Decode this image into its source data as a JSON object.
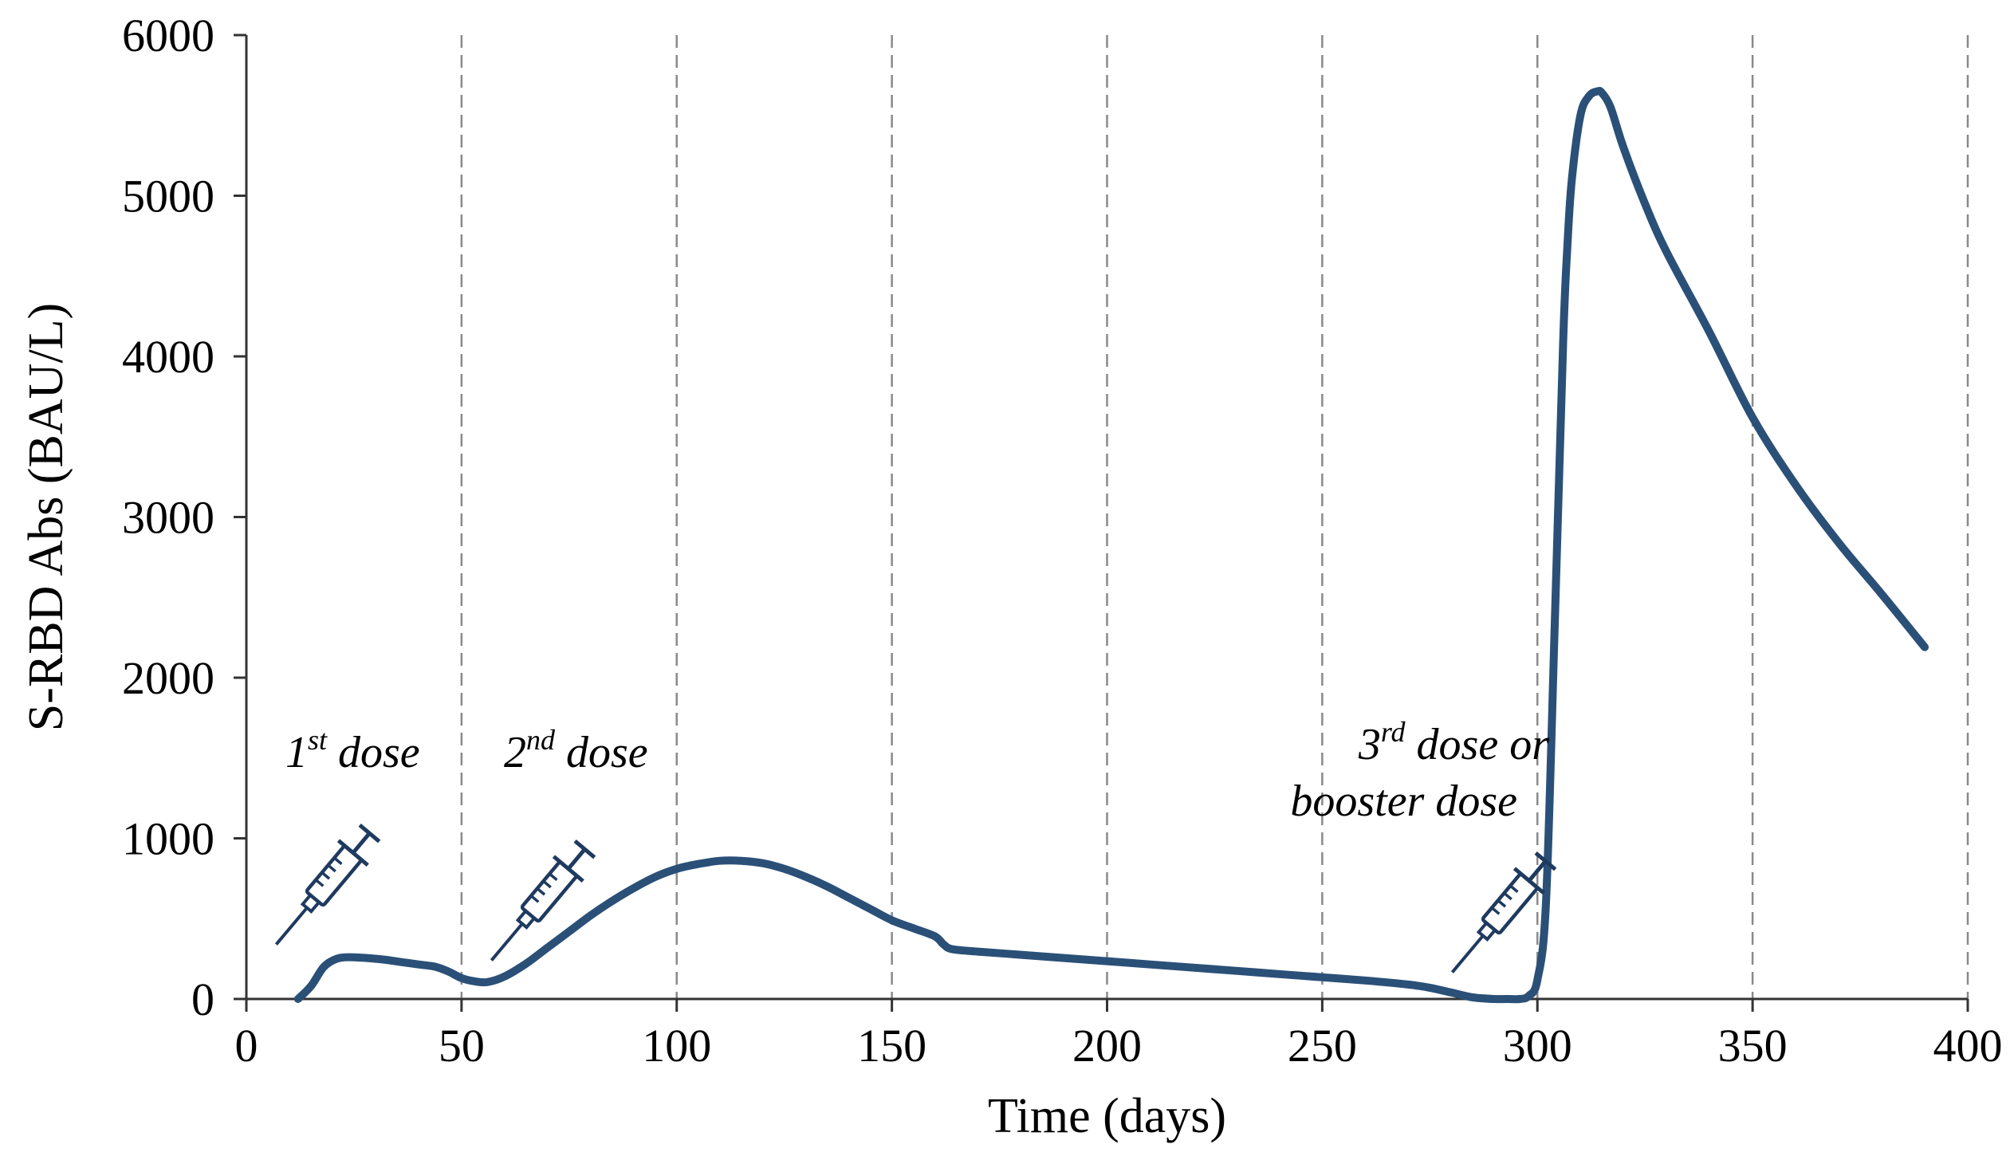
{
  "chart_data": {
    "type": "line",
    "title": "",
    "xlabel": "Time (days)",
    "ylabel": "S-RBD Abs (BAU/L)",
    "xlim": [
      0,
      400
    ],
    "ylim": [
      0,
      6000
    ],
    "x_ticks": [
      0,
      50,
      100,
      150,
      200,
      250,
      300,
      350,
      400
    ],
    "y_ticks": [
      0,
      1000,
      2000,
      3000,
      4000,
      5000,
      6000
    ],
    "grid": "vertical dashed at every x tick",
    "line_color": "#2b5078",
    "series": [
      {
        "name": "S-RBD Abs",
        "x": [
          12,
          15,
          18,
          21,
          24,
          28,
          32,
          36,
          40,
          44,
          47,
          50,
          53,
          56,
          60,
          65,
          70,
          75,
          80,
          85,
          90,
          95,
          100,
          105,
          110,
          115,
          120,
          125,
          130,
          135,
          140,
          145,
          150,
          155,
          160,
          162,
          164,
          170,
          180,
          190,
          200,
          210,
          220,
          230,
          240,
          250,
          260,
          270,
          275,
          280,
          285,
          290,
          293,
          296,
          298,
          300,
          302,
          304,
          306,
          307,
          308,
          310,
          312,
          314,
          315,
          317,
          320,
          325,
          330,
          340,
          350,
          360,
          370,
          380,
          390
        ],
        "values": [
          0,
          80,
          200,
          250,
          260,
          255,
          245,
          230,
          215,
          200,
          170,
          130,
          110,
          105,
          140,
          220,
          320,
          420,
          520,
          610,
          690,
          760,
          810,
          840,
          860,
          860,
          845,
          810,
          760,
          700,
          630,
          560,
          490,
          440,
          390,
          340,
          310,
          295,
          275,
          255,
          235,
          215,
          195,
          175,
          155,
          135,
          115,
          90,
          70,
          40,
          10,
          0,
          0,
          0,
          20,
          120,
          600,
          2300,
          4100,
          4700,
          5100,
          5500,
          5620,
          5650,
          5640,
          5550,
          5300,
          4950,
          4650,
          4150,
          3620,
          3200,
          2840,
          2520,
          2190
        ]
      }
    ],
    "annotations": [
      {
        "name": "first-dose",
        "main": "1",
        "sup": "st",
        "rest": " dose",
        "x": 15
      },
      {
        "name": "second-dose",
        "main": "2",
        "sup": "nd",
        "rest": " dose",
        "x": 65
      },
      {
        "name": "third-dose",
        "main": "3",
        "sup": "rd",
        "rest": " dose or",
        "line2": "booster dose",
        "x": 293
      }
    ],
    "icons": [
      "syringe-icon",
      "syringe-icon",
      "syringe-icon"
    ]
  }
}
